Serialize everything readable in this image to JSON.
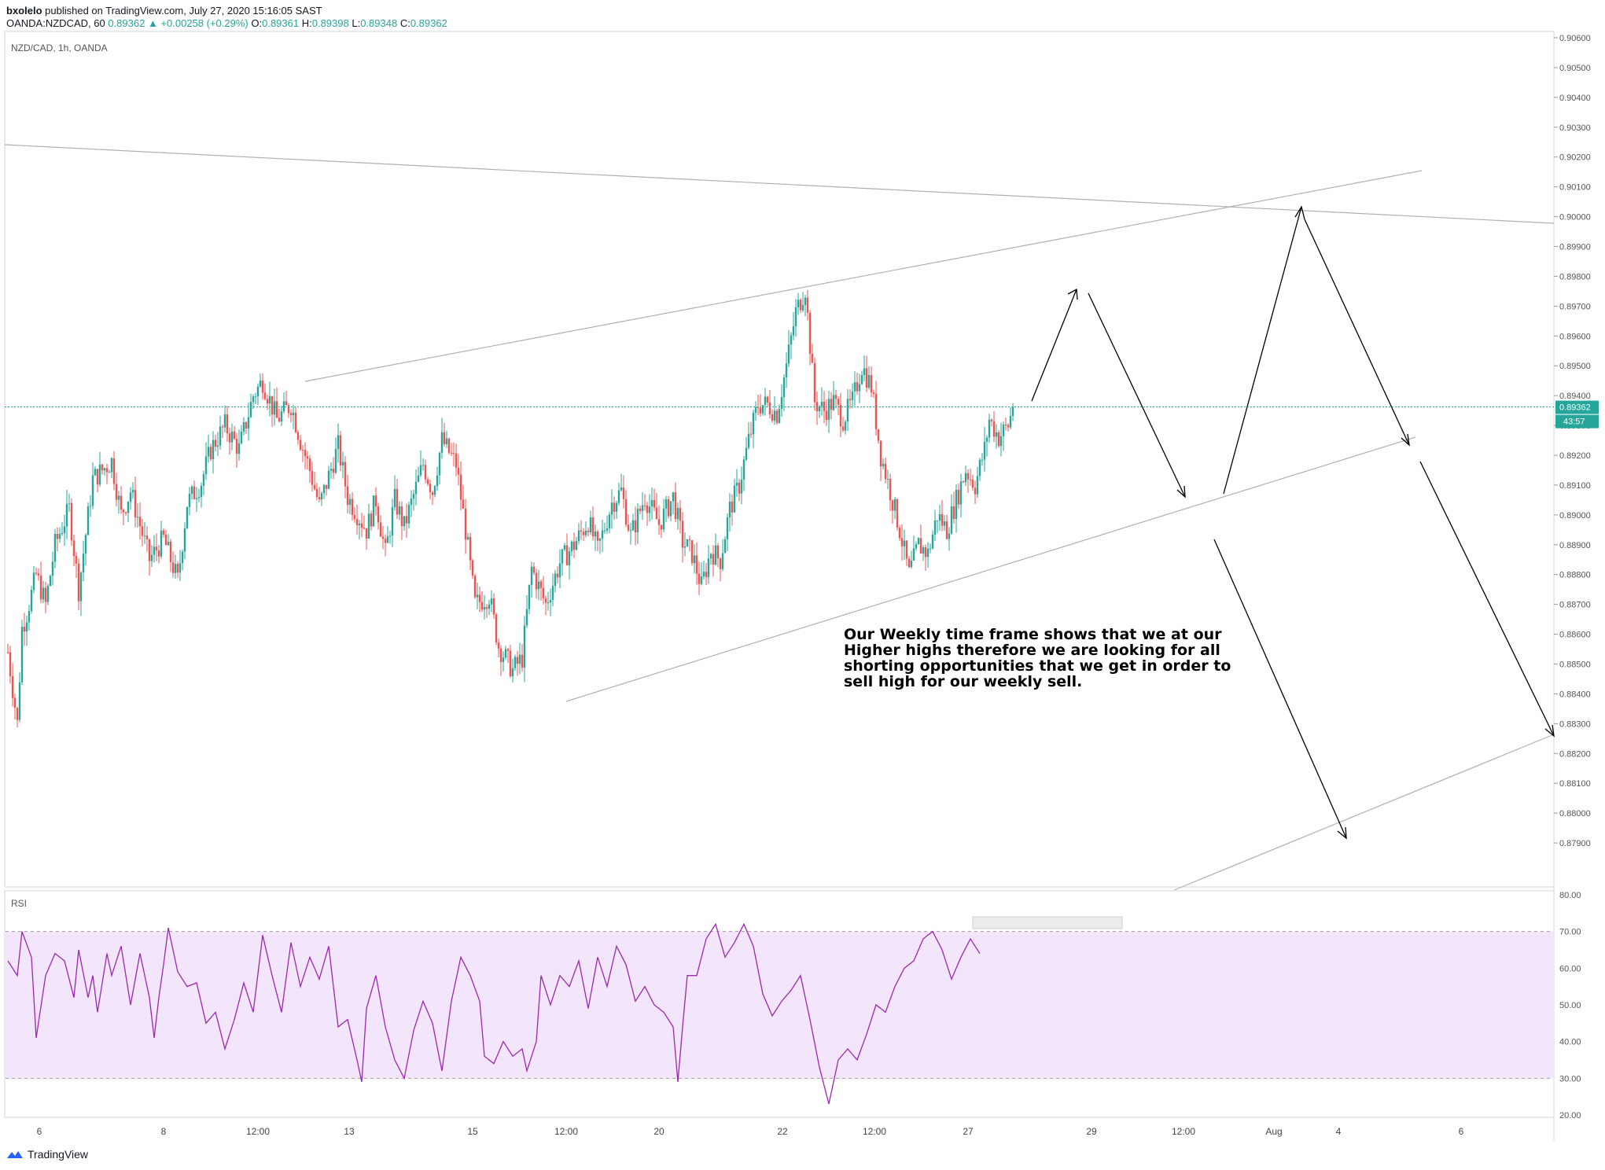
{
  "header": {
    "author": "bxolelo",
    "published_text": "published on TradingView.com, July 27, 2020 15:16:05 SAST",
    "symbol_line": "OANDA:NZDCAD, 60",
    "last": "0.89362",
    "change": "▲ +0.00258 (+0.29%)",
    "o_label": "O:",
    "o_value": "0.89361",
    "h_label": "H:",
    "h_value": "0.89398",
    "l_label": "L:",
    "l_value": "0.89348",
    "c_label": "C:",
    "c_value": "0.89362"
  },
  "pane_title": "NZD/CAD, 1h, OANDA",
  "rsi_title": "RSI",
  "annotation": "Our Weekly time frame shows that we at our Higher highs therefore we are looking for all shorting opportunities that we get in order to sell high for our weekly sell.",
  "footer": {
    "brand": "TradingView",
    "icon": "tradingview-logo-icon"
  },
  "colors": {
    "up": "#26a69a",
    "down": "#ef5350",
    "rsi_line": "#9c27b0",
    "rsi_band": "#f3e5fc",
    "price_tag": "#26a69a"
  },
  "chart_data": [
    {
      "type": "candlestick",
      "title": "NZD/CAD, 1h, OANDA",
      "ylim": [
        0.878,
        0.906
      ],
      "y_ticks": [
        "0.90600",
        "0.90500",
        "0.90400",
        "0.90300",
        "0.90200",
        "0.90100",
        "0.90000",
        "0.89900",
        "0.89800",
        "0.89700",
        "0.89600",
        "0.89500",
        "0.89400",
        "0.89300",
        "0.89200",
        "0.89100",
        "0.89000",
        "0.88900",
        "0.88800",
        "0.88700",
        "0.88600",
        "0.88500",
        "0.88400",
        "0.88300",
        "0.88200",
        "0.88100",
        "0.88000",
        "0.87900"
      ],
      "x_ticks": [
        "6",
        "8",
        "12:00",
        "13",
        "15",
        "12:00",
        "20",
        "22",
        "12:00",
        "27",
        "29",
        "12:00",
        "Aug",
        "4",
        "6"
      ],
      "last_price_label": "0.89362",
      "countdown_label": "43:57",
      "close_path": [
        [
          0,
          0.8854
        ],
        [
          2,
          0.883
        ],
        [
          3,
          0.8862
        ],
        [
          4,
          0.8867
        ],
        [
          6,
          0.888
        ],
        [
          8,
          0.887
        ],
        [
          10,
          0.889
        ],
        [
          13,
          0.8902
        ],
        [
          15,
          0.8875
        ],
        [
          18,
          0.8912
        ],
        [
          22,
          0.8918
        ],
        [
          24,
          0.89
        ],
        [
          26,
          0.8908
        ],
        [
          30,
          0.8885
        ],
        [
          33,
          0.8892
        ],
        [
          36,
          0.8878
        ],
        [
          38,
          0.8904
        ],
        [
          41,
          0.8911
        ],
        [
          43,
          0.8922
        ],
        [
          46,
          0.893
        ],
        [
          49,
          0.8922
        ],
        [
          52,
          0.894
        ],
        [
          54,
          0.8945
        ],
        [
          57,
          0.8932
        ],
        [
          60,
          0.8937
        ],
        [
          62,
          0.8925
        ],
        [
          64,
          0.8915
        ],
        [
          66,
          0.8903
        ],
        [
          70,
          0.8923
        ],
        [
          72,
          0.8906
        ],
        [
          76,
          0.8895
        ],
        [
          78,
          0.8905
        ],
        [
          80,
          0.8887
        ],
        [
          82,
          0.8905
        ],
        [
          84,
          0.8896
        ],
        [
          88,
          0.8917
        ],
        [
          90,
          0.8908
        ],
        [
          92,
          0.8925
        ],
        [
          95,
          0.8917
        ],
        [
          97,
          0.8895
        ],
        [
          99,
          0.887
        ],
        [
          102,
          0.8873
        ],
        [
          104,
          0.8856
        ],
        [
          107,
          0.8848
        ],
        [
          109,
          0.8852
        ],
        [
          111,
          0.8882
        ],
        [
          114,
          0.887
        ],
        [
          117,
          0.8884
        ],
        [
          120,
          0.889
        ],
        [
          123,
          0.8898
        ],
        [
          125,
          0.8888
        ],
        [
          128,
          0.8904
        ],
        [
          130,
          0.8908
        ],
        [
          132,
          0.8893
        ],
        [
          135,
          0.8906
        ],
        [
          138,
          0.8897
        ],
        [
          141,
          0.8906
        ],
        [
          143,
          0.8891
        ],
        [
          145,
          0.8887
        ],
        [
          147,
          0.8876
        ],
        [
          149,
          0.8888
        ],
        [
          151,
          0.8885
        ],
        [
          153,
          0.8902
        ],
        [
          155,
          0.891
        ],
        [
          157,
          0.8925
        ],
        [
          159,
          0.8937
        ],
        [
          161,
          0.8937
        ],
        [
          163,
          0.8934
        ],
        [
          165,
          0.895
        ],
        [
          167,
          0.8968
        ],
        [
          169,
          0.8976
        ],
        [
          171,
          0.8938
        ],
        [
          173,
          0.8935
        ],
        [
          175,
          0.8938
        ],
        [
          177,
          0.8932
        ],
        [
          179,
          0.8938
        ],
        [
          181,
          0.895
        ],
        [
          183,
          0.8943
        ],
        [
          185,
          0.892
        ],
        [
          187,
          0.8908
        ],
        [
          189,
          0.8895
        ],
        [
          191,
          0.888
        ],
        [
          193,
          0.889
        ],
        [
          195,
          0.8887
        ],
        [
          197,
          0.89
        ],
        [
          199,
          0.8895
        ],
        [
          201,
          0.8905
        ],
        [
          203,
          0.8915
        ],
        [
          205,
          0.891
        ],
        [
          207,
          0.8922
        ],
        [
          208,
          0.8932
        ],
        [
          210,
          0.8926
        ],
        [
          212,
          0.893
        ],
        [
          213,
          0.8936
        ]
      ],
      "last_price": 0.89362
    },
    {
      "type": "line",
      "title": "RSI",
      "ylim": [
        20,
        80
      ],
      "y_ticks": [
        "80.00",
        "70.00",
        "60.00",
        "50.00",
        "40.00",
        "30.00",
        "20.00"
      ],
      "band": [
        30,
        70
      ],
      "series": [
        {
          "points": [
            [
              0,
              62
            ],
            [
              2,
              58
            ],
            [
              3,
              70
            ],
            [
              5,
              63
            ],
            [
              6,
              41
            ],
            [
              8,
              58
            ],
            [
              10,
              64
            ],
            [
              12,
              62
            ],
            [
              14,
              52
            ],
            [
              15,
              65
            ],
            [
              17,
              52
            ],
            [
              18,
              58
            ],
            [
              19,
              48
            ],
            [
              21,
              64
            ],
            [
              22,
              58
            ],
            [
              24,
              66
            ],
            [
              26,
              50
            ],
            [
              28,
              64
            ],
            [
              30,
              52
            ],
            [
              31,
              41
            ],
            [
              32,
              52
            ],
            [
              33,
              61
            ],
            [
              34,
              71
            ],
            [
              36,
              59
            ],
            [
              38,
              55
            ],
            [
              40,
              56
            ],
            [
              42,
              45
            ],
            [
              44,
              48
            ],
            [
              46,
              38
            ],
            [
              48,
              46
            ],
            [
              50,
              56
            ],
            [
              52,
              48
            ],
            [
              54,
              69
            ],
            [
              56,
              58
            ],
            [
              58,
              48
            ],
            [
              60,
              67
            ],
            [
              62,
              55
            ],
            [
              64,
              63
            ],
            [
              66,
              57
            ],
            [
              68,
              66
            ],
            [
              70,
              44
            ],
            [
              72,
              46
            ],
            [
              74,
              35
            ],
            [
              75,
              29
            ],
            [
              76,
              49
            ],
            [
              78,
              58
            ],
            [
              80,
              44
            ],
            [
              82,
              35
            ],
            [
              84,
              30
            ],
            [
              86,
              43
            ],
            [
              88,
              51
            ],
            [
              90,
              45
            ],
            [
              92,
              32
            ],
            [
              94,
              51
            ],
            [
              96,
              63
            ],
            [
              98,
              58
            ],
            [
              100,
              51
            ],
            [
              101,
              36
            ],
            [
              103,
              34
            ],
            [
              105,
              40
            ],
            [
              107,
              36
            ],
            [
              109,
              38
            ],
            [
              110,
              32
            ],
            [
              112,
              40
            ],
            [
              113,
              58
            ],
            [
              115,
              50
            ],
            [
              117,
              58
            ],
            [
              119,
              55
            ],
            [
              121,
              62
            ],
            [
              123,
              49
            ],
            [
              125,
              63
            ],
            [
              127,
              55
            ],
            [
              129,
              66
            ],
            [
              131,
              61
            ],
            [
              133,
              51
            ],
            [
              135,
              55
            ],
            [
              137,
              50
            ],
            [
              139,
              48
            ],
            [
              141,
              44
            ],
            [
              142,
              29
            ],
            [
              143,
              44
            ],
            [
              144,
              58
            ],
            [
              146,
              58
            ],
            [
              148,
              68
            ],
            [
              150,
              72
            ],
            [
              152,
              63
            ],
            [
              154,
              67
            ],
            [
              156,
              72
            ],
            [
              158,
              66
            ],
            [
              160,
              53
            ],
            [
              162,
              47
            ],
            [
              164,
              51
            ],
            [
              166,
              54
            ],
            [
              168,
              58
            ],
            [
              170,
              46
            ],
            [
              172,
              33
            ],
            [
              174,
              23
            ],
            [
              176,
              35
            ],
            [
              178,
              38
            ],
            [
              180,
              35
            ],
            [
              182,
              42
            ],
            [
              184,
              50
            ],
            [
              186,
              48
            ],
            [
              188,
              55
            ],
            [
              190,
              60
            ],
            [
              192,
              62
            ],
            [
              194,
              68
            ],
            [
              196,
              70
            ],
            [
              198,
              65
            ],
            [
              200,
              57
            ],
            [
              202,
              63
            ],
            [
              204,
              68
            ],
            [
              206,
              64
            ]
          ]
        }
      ]
    }
  ]
}
